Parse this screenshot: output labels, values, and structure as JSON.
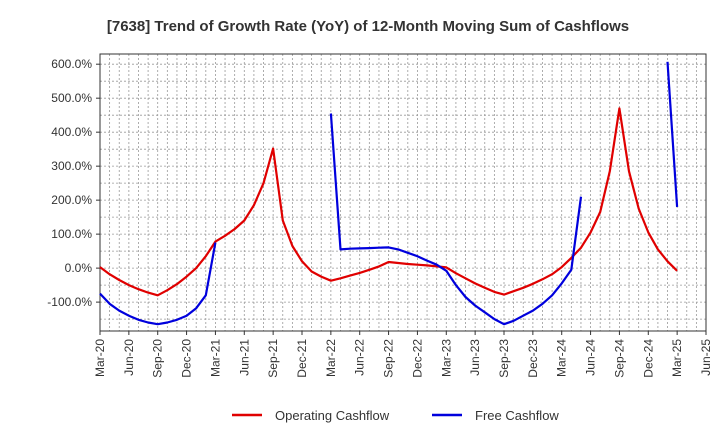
{
  "chart_data": {
    "type": "line",
    "title": "[7638]  Trend of Growth Rate (YoY) of 12-Month Moving Sum of Cashflows",
    "xlabel": "",
    "ylabel": "",
    "x_tick_labels": [
      "Mar-20",
      "Jun-20",
      "Sep-20",
      "Dec-20",
      "Mar-21",
      "Jun-21",
      "Sep-21",
      "Dec-21",
      "Mar-22",
      "Jun-22",
      "Sep-22",
      "Dec-22",
      "Mar-23",
      "Jun-23",
      "Sep-23",
      "Dec-23",
      "Mar-24",
      "Jun-24",
      "Sep-24",
      "Dec-24",
      "Mar-25",
      "Jun-25"
    ],
    "y_tick_labels": [
      "600.0%",
      "500.0%",
      "400.0%",
      "300.0%",
      "200.0%",
      "100.0%",
      "0.0%",
      "-100.0%"
    ],
    "ylim": [
      -185,
      630
    ],
    "y_ticks": [
      600,
      500,
      400,
      300,
      200,
      100,
      0,
      -100
    ],
    "grid": true,
    "legend_position": "bottom",
    "x": [
      "2020-03",
      "2020-04",
      "2020-05",
      "2020-06",
      "2020-07",
      "2020-08",
      "2020-09",
      "2020-10",
      "2020-11",
      "2020-12",
      "2021-01",
      "2021-02",
      "2021-03",
      "2021-04",
      "2021-05",
      "2021-06",
      "2021-07",
      "2021-08",
      "2021-09",
      "2021-10",
      "2021-11",
      "2021-12",
      "2022-01",
      "2022-02",
      "2022-03",
      "2022-04",
      "2022-05",
      "2022-06",
      "2022-07",
      "2022-08",
      "2022-09",
      "2022-10",
      "2022-11",
      "2022-12",
      "2023-01",
      "2023-02",
      "2023-03",
      "2023-04",
      "2023-05",
      "2023-06",
      "2023-07",
      "2023-08",
      "2023-09",
      "2023-10",
      "2023-11",
      "2023-12",
      "2024-01",
      "2024-02",
      "2024-03",
      "2024-04",
      "2024-05",
      "2024-06",
      "2024-07",
      "2024-08",
      "2024-09",
      "2024-10",
      "2024-11",
      "2024-12",
      "2025-01",
      "2025-02",
      "2025-03"
    ],
    "series": [
      {
        "name": "Operating Cashflow",
        "color": "#e00000",
        "values": [
          3,
          -18,
          -35,
          -50,
          -62,
          -72,
          -80,
          -65,
          -47,
          -25,
          0,
          35,
          78,
          95,
          115,
          140,
          185,
          250,
          352,
          140,
          65,
          20,
          -10,
          -25,
          -37,
          -30,
          -22,
          -14,
          -5,
          5,
          18,
          15,
          12,
          10,
          8,
          5,
          2,
          -15,
          -30,
          -45,
          -58,
          -70,
          -78,
          -68,
          -58,
          -46,
          -33,
          -18,
          3,
          30,
          60,
          105,
          165,
          285,
          470,
          285,
          175,
          105,
          55,
          20,
          -8
        ]
      },
      {
        "name": "Free Cashflow",
        "color": "#0000dd",
        "values": [
          -75,
          -105,
          -125,
          -140,
          -152,
          -160,
          -165,
          -160,
          -152,
          -140,
          -118,
          -80,
          75,
          null,
          null,
          null,
          null,
          null,
          null,
          null,
          null,
          null,
          null,
          null,
          455,
          55,
          57,
          58,
          59,
          60,
          61,
          55,
          45,
          35,
          22,
          10,
          -8,
          -50,
          -85,
          -110,
          -130,
          -150,
          -165,
          -155,
          -140,
          -125,
          -105,
          -80,
          -45,
          -5,
          210,
          null,
          null,
          null,
          null,
          null,
          null,
          null,
          null,
          607,
          180
        ]
      }
    ]
  }
}
